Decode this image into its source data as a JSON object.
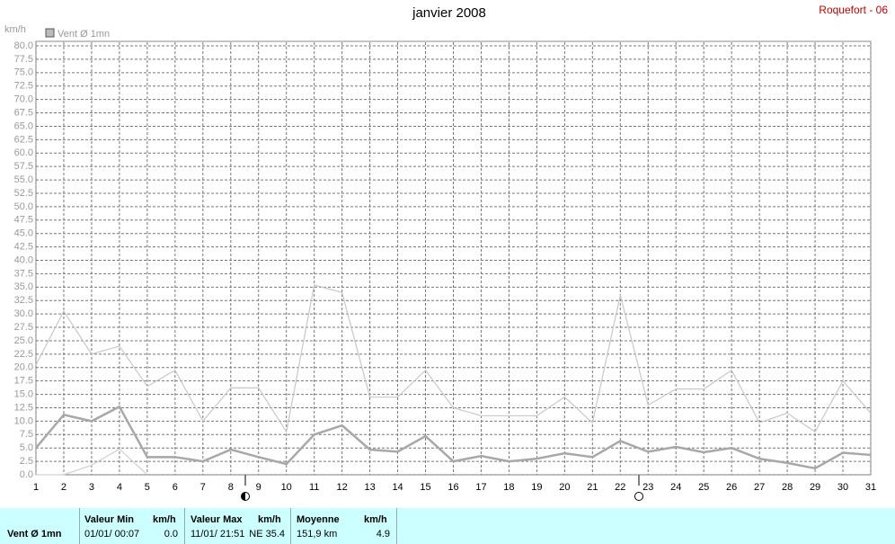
{
  "chart_data": {
    "type": "line",
    "title": "janvier 2008",
    "station": "Roquefort - 06",
    "y_label": "km/h",
    "legend": "Vent Ø 1mn",
    "x": [
      1,
      2,
      3,
      4,
      5,
      6,
      7,
      8,
      9,
      10,
      11,
      12,
      13,
      14,
      15,
      16,
      17,
      18,
      19,
      20,
      21,
      22,
      23,
      24,
      25,
      26,
      27,
      28,
      29,
      30,
      31
    ],
    "xlim": [
      1,
      31
    ],
    "xticks": [
      1,
      2,
      3,
      4,
      5,
      6,
      7,
      8,
      9,
      10,
      11,
      12,
      13,
      14,
      15,
      16,
      17,
      18,
      19,
      20,
      21,
      22,
      23,
      24,
      25,
      26,
      27,
      28,
      29,
      30,
      31
    ],
    "ylim": [
      0,
      80
    ],
    "yticks": [
      {
        "value": 0,
        "label": "0.0"
      },
      2.5,
      {
        "value": 5,
        "label": "5.0"
      },
      7.5,
      {
        "value": 10,
        "label": "10.0"
      },
      12.5,
      {
        "value": 15,
        "label": "15.0"
      },
      17.5,
      {
        "value": 20,
        "label": "20.0"
      },
      22.5,
      {
        "value": 25,
        "label": "25.0"
      },
      27.5,
      {
        "value": 30,
        "label": "30.0"
      },
      32.5,
      {
        "value": 35,
        "label": "35.0"
      },
      37.5,
      {
        "value": 40,
        "label": "40.0"
      },
      42.5,
      {
        "value": 45,
        "label": "45.0"
      },
      47.5,
      {
        "value": 50,
        "label": "50.0"
      },
      52.5,
      {
        "value": 55,
        "label": "55.0"
      },
      57.5,
      {
        "value": 60,
        "label": "60.0"
      },
      62.5,
      {
        "value": 65,
        "label": "65.0"
      },
      67.5,
      {
        "value": 70,
        "label": "70.0"
      },
      72.5,
      {
        "value": 75,
        "label": "75.0"
      },
      77.5,
      {
        "value": 80,
        "label": "80.0"
      }
    ],
    "grid": true,
    "series": [
      {
        "color": "#c8c8c8",
        "width": 1.2,
        "values": [
          20.5,
          30.5,
          22.5,
          24,
          16.5,
          19.5,
          10,
          16.2,
          16.2,
          8,
          35.4,
          34,
          14.5,
          14.5,
          19.5,
          12.5,
          11,
          11,
          11,
          14.5,
          9.7,
          33.5,
          13,
          16,
          16,
          19.5,
          9.7,
          11.5,
          8,
          17.5,
          11.5
        ]
      },
      {
        "color": "#d0d0d0",
        "width": 1.2,
        "values": [
          0,
          0,
          1.8,
          4.8,
          0,
          null,
          null,
          null,
          null,
          null,
          null,
          null,
          null,
          null,
          null,
          null,
          null,
          null,
          null,
          null,
          null,
          null,
          null,
          null,
          null,
          null,
          null,
          null,
          null,
          null,
          null
        ]
      },
      {
        "color": "#a8a8a8",
        "width": 2.5,
        "values": [
          5,
          11.2,
          10,
          12.7,
          3.3,
          3.3,
          2.5,
          4.7,
          3.3,
          2,
          7.5,
          9.2,
          4.7,
          4.3,
          7.2,
          2.5,
          3.5,
          2.5,
          3,
          4,
          3.3,
          6.3,
          4.3,
          5.2,
          4.2,
          5,
          3,
          2.2,
          1.2,
          4.1,
          3.7
        ]
      }
    ]
  },
  "summary": {
    "label": "Vent Ø 1mn",
    "min": {
      "title": "Valeur Min",
      "unit": "km/h",
      "date": "01/01/  00:07",
      "value": "0.0"
    },
    "max": {
      "title": "Valeur Max",
      "unit": "km/h",
      "date": "11/01/  21:51",
      "value": "NE 35.4"
    },
    "mean": {
      "title": "Moyenne",
      "unit": "km/h",
      "date": "151,9 km",
      "value": "4.9"
    }
  }
}
